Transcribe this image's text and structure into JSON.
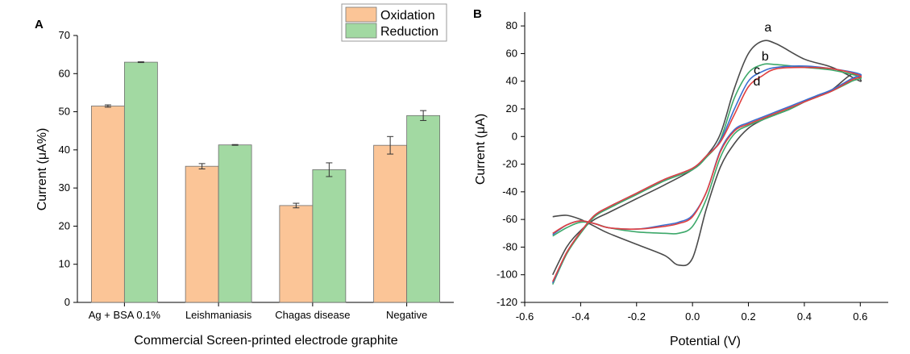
{
  "chart_data": [
    {
      "panel": "A",
      "type": "bar",
      "xlabel": "Commercial Screen-printed electrode graphite",
      "ylabel": "Current (μA%)",
      "ylim": [
        0,
        70
      ],
      "yticks": [
        "0",
        "10",
        "20",
        "30",
        "40",
        "50",
        "60",
        "70"
      ],
      "categories": [
        "Ag + BSA 0.1%",
        "Leishmaniasis",
        "Chagas disease",
        "Negative"
      ],
      "series": [
        {
          "name": "Oxidation",
          "color": "#fbc597",
          "values": [
            51.5,
            35.7,
            25.4,
            41.2
          ],
          "errors": [
            0.3,
            0.7,
            0.6,
            2.3
          ]
        },
        {
          "name": "Reduction",
          "color": "#a2d9a2",
          "values": [
            63.0,
            41.3,
            34.8,
            49.0
          ],
          "errors": [
            0.1,
            0.1,
            1.8,
            1.3
          ]
        }
      ],
      "legend": "top-right"
    },
    {
      "panel": "B",
      "type": "line",
      "xlabel": "Potential (V)",
      "ylabel": "Current (μA)",
      "xlim": [
        -0.6,
        0.7
      ],
      "ylim": [
        -120,
        90
      ],
      "xticks": [
        "-0.6",
        "-0.4",
        "-0.2",
        "0.0",
        "0.2",
        "0.4",
        "0.6"
      ],
      "yticks": [
        "-120",
        "-100",
        "-80",
        "-60",
        "-40",
        "-20",
        "0",
        "20",
        "40",
        "60",
        "80"
      ],
      "series": [
        {
          "name": "a",
          "color": "#4a4a4a",
          "x": [
            -0.5,
            -0.45,
            -0.4,
            -0.35,
            -0.3,
            -0.2,
            -0.1,
            0.0,
            0.05,
            0.1,
            0.15,
            0.2,
            0.25,
            0.3,
            0.4,
            0.5,
            0.6,
            0.57,
            0.5,
            0.45,
            0.4,
            0.35,
            0.3,
            0.25,
            0.2,
            0.15,
            0.1,
            0.05,
            0.0,
            -0.05,
            -0.1,
            -0.2,
            -0.3,
            -0.35,
            -0.4,
            -0.45,
            -0.5
          ],
          "y": [
            -100,
            -80,
            -68,
            -60,
            -55,
            -45,
            -35,
            -24,
            -14,
            2,
            35,
            60,
            69,
            67,
            56,
            50,
            40,
            45,
            34,
            30,
            25,
            20,
            16,
            12,
            6,
            -5,
            -22,
            -52,
            -88,
            -93,
            -86,
            -78,
            -70,
            -65,
            -60,
            -57,
            -58
          ]
        },
        {
          "name": "b",
          "color": "#3da86a",
          "x": [
            -0.5,
            -0.45,
            -0.4,
            -0.35,
            -0.3,
            -0.2,
            -0.1,
            0.0,
            0.05,
            0.1,
            0.15,
            0.2,
            0.25,
            0.3,
            0.4,
            0.5,
            0.6,
            0.57,
            0.5,
            0.45,
            0.4,
            0.35,
            0.3,
            0.25,
            0.2,
            0.15,
            0.1,
            0.05,
            0.0,
            -0.05,
            -0.1,
            -0.2,
            -0.3,
            -0.35,
            -0.4,
            -0.45,
            -0.5
          ],
          "y": [
            -107,
            -85,
            -70,
            -58,
            -52,
            -42,
            -32,
            -24,
            -15,
            -2,
            28,
            46,
            52,
            52,
            50,
            48,
            43,
            40,
            33,
            29,
            25,
            20,
            16,
            12,
            8,
            2,
            -15,
            -45,
            -65,
            -70,
            -70,
            -69,
            -66,
            -63,
            -62,
            -66,
            -72
          ]
        },
        {
          "name": "c",
          "color": "#3a6fd0",
          "x": [
            -0.5,
            -0.45,
            -0.4,
            -0.35,
            -0.3,
            -0.2,
            -0.1,
            0.0,
            0.05,
            0.1,
            0.15,
            0.2,
            0.25,
            0.3,
            0.4,
            0.5,
            0.6,
            0.57,
            0.5,
            0.45,
            0.4,
            0.35,
            0.3,
            0.25,
            0.2,
            0.15,
            0.1,
            0.05,
            0.0,
            -0.05,
            -0.1,
            -0.2,
            -0.3,
            -0.35,
            -0.4,
            -0.45,
            -0.5
          ],
          "y": [
            -106,
            -84,
            -69,
            -57,
            -51,
            -41,
            -31,
            -23,
            -14,
            -3,
            20,
            40,
            47,
            50,
            51,
            49,
            45,
            42,
            34,
            30,
            26,
            22,
            18,
            14,
            10,
            5,
            -10,
            -40,
            -57,
            -62,
            -64,
            -67,
            -66,
            -63,
            -61,
            -64,
            -71
          ]
        },
        {
          "name": "d",
          "color": "#e04040",
          "x": [
            -0.5,
            -0.45,
            -0.4,
            -0.35,
            -0.3,
            -0.2,
            -0.1,
            0.0,
            0.05,
            0.1,
            0.15,
            0.2,
            0.25,
            0.3,
            0.4,
            0.5,
            0.6,
            0.57,
            0.5,
            0.45,
            0.4,
            0.35,
            0.3,
            0.25,
            0.2,
            0.15,
            0.1,
            0.05,
            0.0,
            -0.05,
            -0.1,
            -0.2,
            -0.3,
            -0.35,
            -0.4,
            -0.45,
            -0.5
          ],
          "y": [
            -105,
            -84,
            -69,
            -57,
            -51,
            -41,
            -31,
            -23,
            -14,
            -4,
            16,
            36,
            44,
            49,
            50,
            49,
            44,
            41,
            33,
            29,
            25,
            21,
            17,
            13,
            9,
            4,
            -11,
            -40,
            -58,
            -63,
            -65,
            -67,
            -66,
            -63,
            -61,
            -64,
            -70
          ]
        }
      ],
      "annotations": [
        "a",
        "b",
        "c",
        "d"
      ]
    }
  ]
}
